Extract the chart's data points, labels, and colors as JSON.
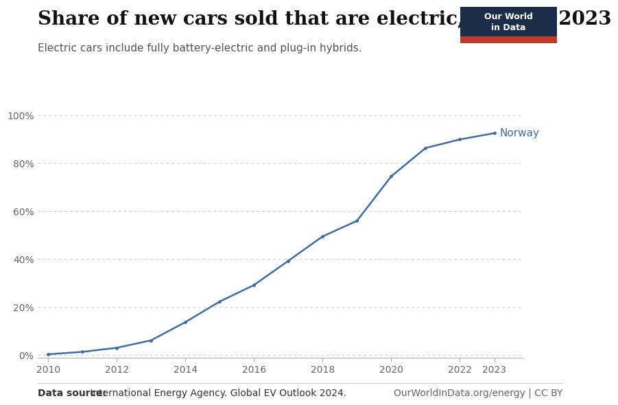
{
  "title": "Share of new cars sold that are electric, 2010 to 2023",
  "subtitle": "Electric cars include fully battery-electric and plug-in hybrids.",
  "datasource_bold": "Data source:",
  "datasource_rest": " International Energy Agency. Global EV Outlook 2024.",
  "credit": "OurWorldInData.org/energy | CC BY",
  "line_color": "#3d6da8",
  "background_color": "#ffffff",
  "label": "Norway",
  "years": [
    2010,
    2011,
    2012,
    2013,
    2014,
    2015,
    2016,
    2017,
    2018,
    2019,
    2020,
    2021,
    2022,
    2023
  ],
  "values": [
    0.003,
    0.013,
    0.03,
    0.061,
    0.137,
    0.223,
    0.292,
    0.393,
    0.495,
    0.56,
    0.746,
    0.864,
    0.9,
    0.926
  ],
  "xlim": [
    2010,
    2023
  ],
  "ylim": [
    0,
    1.0
  ],
  "yticks": [
    0,
    0.2,
    0.4,
    0.6,
    0.8,
    1.0
  ],
  "ytick_labels": [
    "0%",
    "20%",
    "40%",
    "60%",
    "80%",
    "100%"
  ],
  "xticks": [
    2010,
    2012,
    2014,
    2016,
    2018,
    2020,
    2022,
    2023
  ],
  "grid_color": "#cccccc",
  "tick_color": "#666666",
  "owid_box_color": "#1a2e4a",
  "owid_red": "#c0392b",
  "title_fontsize": 20,
  "subtitle_fontsize": 11,
  "label_fontsize": 11,
  "footer_fontsize": 10
}
